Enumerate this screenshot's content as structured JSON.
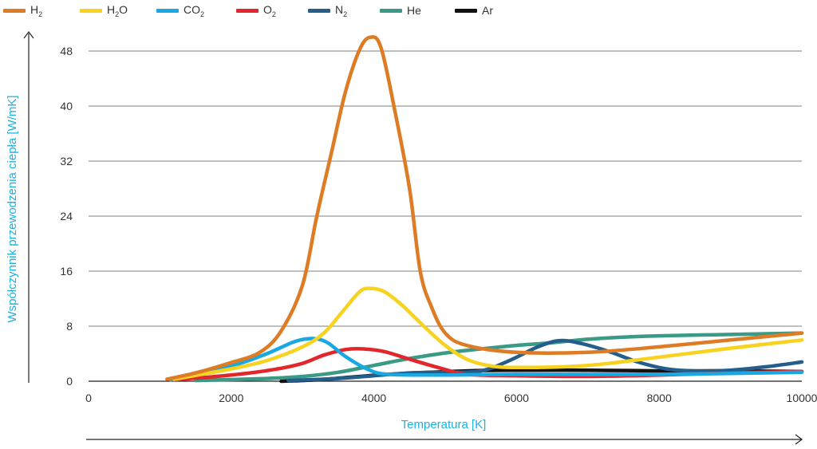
{
  "legend": [
    {
      "name": "H2",
      "base": "H",
      "sub": "2",
      "suffix": "",
      "color": "#dd7c24"
    },
    {
      "name": "H2O",
      "base": "H",
      "sub": "2",
      "suffix": "O",
      "color": "#f7d21f"
    },
    {
      "name": "CO2",
      "base": "CO",
      "sub": "2",
      "suffix": "",
      "color": "#1aa8e2"
    },
    {
      "name": "O2",
      "base": "O",
      "sub": "2",
      "suffix": "",
      "color": "#e2262b"
    },
    {
      "name": "N2",
      "base": "N",
      "sub": "2",
      "suffix": "",
      "color": "#235e8c"
    },
    {
      "name": "He",
      "base": "He",
      "sub": "",
      "suffix": "",
      "color": "#3a9a86"
    },
    {
      "name": "Ar",
      "base": "Ar",
      "sub": "",
      "suffix": "",
      "color": "#111111"
    }
  ],
  "chart_data": {
    "type": "line",
    "title": "",
    "xlabel": "Temperatura [K]",
    "ylabel": "Współczynnik przewodzenia ciepła [W/mK]",
    "xlim": [
      0,
      10000
    ],
    "ylim": [
      0,
      48
    ],
    "xticks": [
      0,
      2000,
      4000,
      6000,
      8000,
      10000
    ],
    "yticks": [
      0,
      8,
      16,
      24,
      32,
      40,
      48
    ],
    "grid": "horizontal",
    "series": [
      {
        "name": "H2",
        "color": "#dd7c24",
        "points": [
          [
            1100,
            0.3
          ],
          [
            1500,
            1.2
          ],
          [
            2000,
            2.7
          ],
          [
            2400,
            4.2
          ],
          [
            2700,
            7.3
          ],
          [
            3000,
            14
          ],
          [
            3200,
            24
          ],
          [
            3400,
            33
          ],
          [
            3600,
            42
          ],
          [
            3800,
            48.2
          ],
          [
            3950,
            50
          ],
          [
            4100,
            48.5
          ],
          [
            4300,
            39
          ],
          [
            4500,
            28
          ],
          [
            4650,
            16
          ],
          [
            4800,
            11
          ],
          [
            5000,
            7
          ],
          [
            5300,
            5.2
          ],
          [
            6000,
            4.2
          ],
          [
            7000,
            4.2
          ],
          [
            8000,
            5
          ],
          [
            9000,
            6
          ],
          [
            10000,
            7
          ]
        ]
      },
      {
        "name": "H2O",
        "color": "#f7d21f",
        "points": [
          [
            1200,
            0.3
          ],
          [
            2000,
            1.8
          ],
          [
            2500,
            3
          ],
          [
            3000,
            5
          ],
          [
            3300,
            7
          ],
          [
            3550,
            10
          ],
          [
            3800,
            13
          ],
          [
            3950,
            13.5
          ],
          [
            4150,
            13
          ],
          [
            4400,
            11
          ],
          [
            4700,
            8
          ],
          [
            5000,
            5.2
          ],
          [
            5300,
            3.2
          ],
          [
            5600,
            2.3
          ],
          [
            6000,
            2
          ],
          [
            7000,
            2.3
          ],
          [
            8000,
            3.5
          ],
          [
            9000,
            4.8
          ],
          [
            10000,
            6
          ]
        ]
      },
      {
        "name": "CO2",
        "color": "#1aa8e2",
        "points": [
          [
            1150,
            0.2
          ],
          [
            2000,
            2.2
          ],
          [
            2500,
            4
          ],
          [
            2900,
            5.8
          ],
          [
            3150,
            6.2
          ],
          [
            3350,
            5.6
          ],
          [
            3600,
            3.6
          ],
          [
            3900,
            1.8
          ],
          [
            4200,
            1
          ],
          [
            5000,
            0.9
          ],
          [
            6000,
            1
          ],
          [
            8000,
            1
          ],
          [
            10000,
            1.3
          ]
        ]
      },
      {
        "name": "O2",
        "color": "#e2262b",
        "points": [
          [
            1200,
            0.2
          ],
          [
            2000,
            0.9
          ],
          [
            2600,
            1.7
          ],
          [
            3000,
            2.6
          ],
          [
            3300,
            3.8
          ],
          [
            3600,
            4.6
          ],
          [
            3850,
            4.7
          ],
          [
            4150,
            4.3
          ],
          [
            4500,
            3.2
          ],
          [
            4900,
            2
          ],
          [
            5300,
            1
          ],
          [
            6000,
            0.8
          ],
          [
            7000,
            0.7
          ],
          [
            8000,
            0.9
          ],
          [
            9000,
            1.2
          ],
          [
            10000,
            1.4
          ]
        ]
      },
      {
        "name": "N2",
        "color": "#235e8c",
        "points": [
          [
            2800,
            0.1
          ],
          [
            3500,
            0.4
          ],
          [
            4000,
            0.8
          ],
          [
            4500,
            1.2
          ],
          [
            5000,
            1.3
          ],
          [
            5500,
            1.5
          ],
          [
            5900,
            3
          ],
          [
            6300,
            5
          ],
          [
            6600,
            5.9
          ],
          [
            6900,
            5.5
          ],
          [
            7300,
            4.3
          ],
          [
            7700,
            2.8
          ],
          [
            8100,
            1.8
          ],
          [
            8500,
            1.5
          ],
          [
            9000,
            1.6
          ],
          [
            9500,
            2.1
          ],
          [
            10000,
            2.8
          ]
        ]
      },
      {
        "name": "He",
        "color": "#3a9a86",
        "points": [
          [
            1500,
            0.1
          ],
          [
            2500,
            0.4
          ],
          [
            3000,
            0.7
          ],
          [
            3500,
            1.3
          ],
          [
            4000,
            2.3
          ],
          [
            4500,
            3.3
          ],
          [
            5000,
            4.1
          ],
          [
            5500,
            4.7
          ],
          [
            6000,
            5.2
          ],
          [
            6500,
            5.6
          ],
          [
            7000,
            6.1
          ],
          [
            7500,
            6.4
          ],
          [
            8000,
            6.6
          ],
          [
            9000,
            6.8
          ],
          [
            10000,
            7
          ]
        ]
      },
      {
        "name": "Ar",
        "color": "#111111",
        "points": [
          [
            2700,
            0
          ],
          [
            3200,
            0.2
          ],
          [
            3700,
            0.6
          ],
          [
            4200,
            1
          ],
          [
            4800,
            1.3
          ],
          [
            5300,
            1.5
          ],
          [
            6000,
            1.6
          ],
          [
            7000,
            1.6
          ],
          [
            8000,
            1.5
          ],
          [
            9000,
            1.5
          ],
          [
            10000,
            1.4
          ]
        ]
      }
    ]
  }
}
